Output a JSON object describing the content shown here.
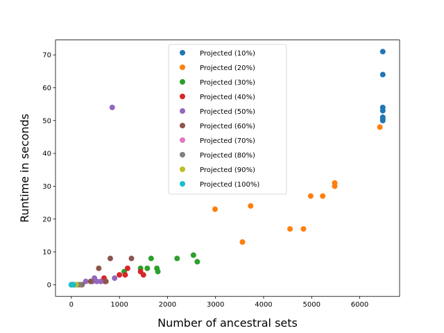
{
  "chart_data": {
    "type": "scatter",
    "title": "",
    "xlabel": "Number of ancestral sets",
    "ylabel": "Runtime in seconds",
    "xlim": [
      -330,
      6830
    ],
    "ylim": [
      -3.55,
      74.55
    ],
    "xticks": [
      0,
      1000,
      2000,
      3000,
      4000,
      5000,
      6000
    ],
    "yticks": [
      0,
      10,
      20,
      30,
      40,
      50,
      60,
      70
    ],
    "grid": false,
    "legend_position": "top-center",
    "series": [
      {
        "name": "Projected (10%)",
        "color": "#1f77b4",
        "points": [
          [
            6480,
            71
          ],
          [
            6480,
            64
          ],
          [
            6480,
            54
          ],
          [
            6480,
            53
          ],
          [
            6480,
            51
          ],
          [
            6480,
            50.5
          ],
          [
            6480,
            50
          ],
          [
            0,
            0
          ],
          [
            20,
            0
          ]
        ]
      },
      {
        "name": "Projected (20%)",
        "color": "#ff7f0e",
        "points": [
          [
            6420,
            48
          ],
          [
            5480,
            31
          ],
          [
            5480,
            30
          ],
          [
            4980,
            27
          ],
          [
            5230,
            27
          ],
          [
            3730,
            24
          ],
          [
            2990,
            23
          ],
          [
            4830,
            17
          ],
          [
            4550,
            17
          ],
          [
            3560,
            13
          ],
          [
            10,
            0
          ],
          [
            30,
            0
          ]
        ]
      },
      {
        "name": "Projected (30%)",
        "color": "#2ca02c",
        "points": [
          [
            2540,
            9
          ],
          [
            2620,
            7
          ],
          [
            2200,
            8
          ],
          [
            1660,
            8
          ],
          [
            1440,
            5
          ],
          [
            1580,
            5
          ],
          [
            1780,
            5
          ],
          [
            1800,
            4
          ],
          [
            1100,
            4
          ],
          [
            0,
            0
          ],
          [
            40,
            0
          ]
        ]
      },
      {
        "name": "Projected (40%)",
        "color": "#d62728",
        "points": [
          [
            1170,
            5
          ],
          [
            1440,
            4
          ],
          [
            1000,
            3
          ],
          [
            1120,
            3
          ],
          [
            1500,
            3
          ],
          [
            680,
            2
          ],
          [
            700,
            1
          ],
          [
            20,
            0
          ],
          [
            60,
            0
          ]
        ]
      },
      {
        "name": "Projected (50%)",
        "color": "#9467bd",
        "points": [
          [
            850,
            54
          ],
          [
            900,
            2
          ],
          [
            480,
            2
          ],
          [
            440,
            1
          ],
          [
            300,
            1
          ],
          [
            530,
            1
          ],
          [
            610,
            1
          ],
          [
            20,
            0
          ],
          [
            80,
            0
          ]
        ]
      },
      {
        "name": "Projected (60%)",
        "color": "#8c564b",
        "points": [
          [
            570,
            5
          ],
          [
            1250,
            8
          ],
          [
            810,
            8
          ],
          [
            400,
            1
          ],
          [
            720,
            1
          ],
          [
            220,
            0
          ],
          [
            10,
            0
          ]
        ]
      },
      {
        "name": "Projected (70%)",
        "color": "#e377c2",
        "points": [
          [
            50,
            0
          ],
          [
            90,
            0
          ],
          [
            120,
            0
          ]
        ]
      },
      {
        "name": "Projected (80%)",
        "color": "#7f7f7f",
        "points": [
          [
            30,
            0
          ],
          [
            70,
            0
          ],
          [
            150,
            0
          ],
          [
            190,
            0
          ]
        ]
      },
      {
        "name": "Projected (90%)",
        "color": "#bcbd22",
        "points": [
          [
            20,
            0
          ],
          [
            60,
            0
          ],
          [
            100,
            0
          ]
        ]
      },
      {
        "name": "Projected (100%)",
        "color": "#17becf",
        "points": [
          [
            0,
            0
          ],
          [
            10,
            0
          ],
          [
            25,
            0
          ],
          [
            40,
            0
          ]
        ]
      }
    ]
  }
}
